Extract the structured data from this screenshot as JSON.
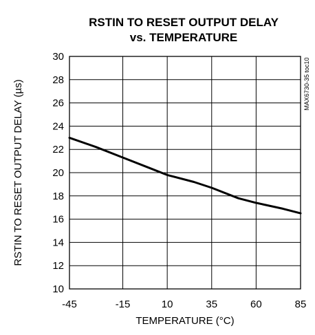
{
  "chart_data": {
    "type": "line",
    "title_lines": [
      "RSTIN TO RESET OUTPUT DELAY",
      "vs. TEMPERATURE"
    ],
    "xlabel": "TEMPERATURE (°C)",
    "ylabel": "RSTIN TO RESET OUTPUT DELAY (µs)",
    "side_note": "MAX6730-35 toc10",
    "xlim": [
      -45,
      85
    ],
    "ylim": [
      10,
      30
    ],
    "x_ticks": [
      -45,
      -15,
      10,
      35,
      60,
      85
    ],
    "x_tick_labels": [
      "-45",
      "-15",
      "10",
      "35",
      "60",
      "85"
    ],
    "y_ticks": [
      10,
      12,
      14,
      16,
      18,
      20,
      22,
      24,
      26,
      28,
      30
    ],
    "y_tick_labels": [
      "10",
      "12",
      "14",
      "16",
      "18",
      "20",
      "22",
      "24",
      "26",
      "28",
      "30"
    ],
    "grid": true,
    "series": [
      {
        "x": [
          -45,
          -30,
          -15,
          0,
          10,
          25,
          35,
          50,
          60,
          75,
          85
        ],
        "y": [
          23.0,
          22.2,
          21.3,
          20.4,
          19.8,
          19.2,
          18.7,
          17.8,
          17.4,
          16.9,
          16.5
        ]
      }
    ]
  }
}
